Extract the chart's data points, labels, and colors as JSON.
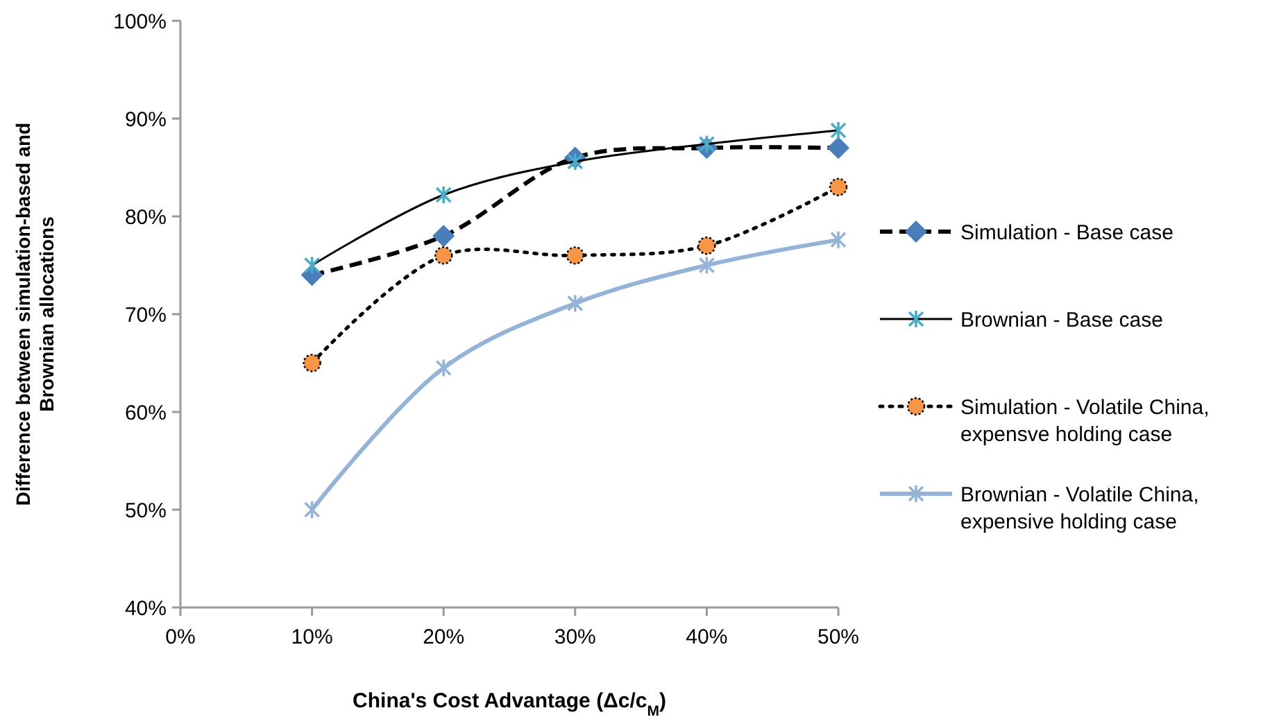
{
  "chart_data": {
    "type": "line",
    "xlabel": "China's Cost Advantage (Δc/c$_{M}$)",
    "ylabel": "Difference between simulation-based and Brownian allocations",
    "x": [
      10,
      20,
      30,
      40,
      50
    ],
    "xlim": [
      0,
      50
    ],
    "xticks": [
      {
        "value": 0,
        "label": "0%"
      },
      {
        "value": 10,
        "label": "10%"
      },
      {
        "value": 20,
        "label": "20%"
      },
      {
        "value": 30,
        "label": "30%"
      },
      {
        "value": 40,
        "label": "40%"
      },
      {
        "value": 50,
        "label": "50%"
      }
    ],
    "ylim": [
      40,
      100
    ],
    "yticks": [
      {
        "value": 40,
        "label": "40%"
      },
      {
        "value": 50,
        "label": "50%"
      },
      {
        "value": 60,
        "label": "60%"
      },
      {
        "value": 70,
        "label": "70%"
      },
      {
        "value": 80,
        "label": "80%"
      },
      {
        "value": 90,
        "label": "90%"
      },
      {
        "value": 100,
        "label": "100%"
      }
    ],
    "grid": false,
    "legend": "right",
    "series": [
      {
        "name": "Simulation - Base case",
        "color": "#000000",
        "colors": [
          "#4a7ebb",
          "#4a7ebb",
          "#4a7ebb",
          "#4a7ebb",
          "#4a7ebb"
        ],
        "line_style": "dashed",
        "marker": "diamond",
        "values": [
          74,
          78,
          86,
          87,
          87
        ]
      },
      {
        "name": "Brownian -  Base case",
        "color": "#000000",
        "colors": [
          "#4bacc6",
          "#4bacc6",
          "#4bacc6",
          "#4bacc6",
          "#4bacc6"
        ],
        "line_style": "solid",
        "marker": "cross",
        "values": [
          75,
          82.2,
          85.6,
          87.4,
          88.8
        ]
      },
      {
        "name": "Simulation - Volatile China, expensve holding case",
        "color": "#000000",
        "colors": [
          "#f79646",
          "#f79646",
          "#f79646",
          "#f79646",
          "#f79646"
        ],
        "line_style": "dotted",
        "marker": "circle",
        "values": [
          65,
          76,
          76,
          77,
          83
        ]
      },
      {
        "name": "Brownian - Volatile China, expensive holding case",
        "color": "#95b3d7",
        "line_style": "solid",
        "marker": "cross",
        "values": [
          50,
          64.5,
          71.1,
          75,
          77.6
        ]
      }
    ]
  }
}
